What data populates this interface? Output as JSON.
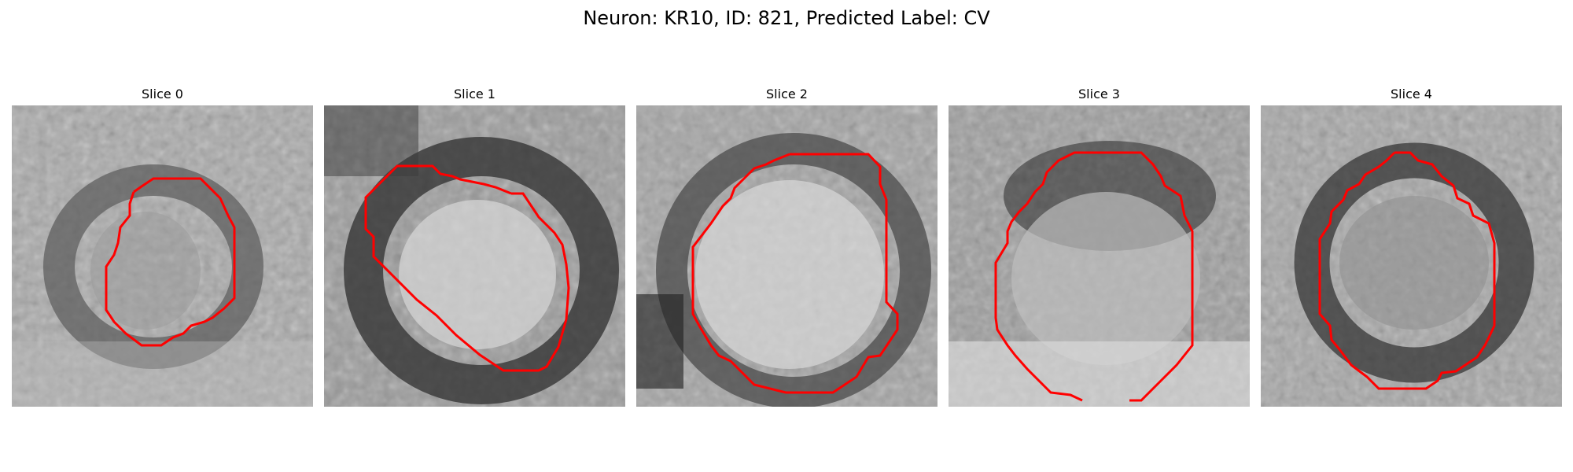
{
  "figure": {
    "title": "Neuron: KR10, ID: 821, Predicted Label: CV"
  },
  "colors": {
    "contour": "#ff0000",
    "background": "#ffffff"
  },
  "panels": [
    {
      "title": "Slice 0"
    },
    {
      "title": "Slice 1"
    },
    {
      "title": "Slice 2"
    },
    {
      "title": "Slice 3"
    },
    {
      "title": "Slice 4"
    }
  ]
}
